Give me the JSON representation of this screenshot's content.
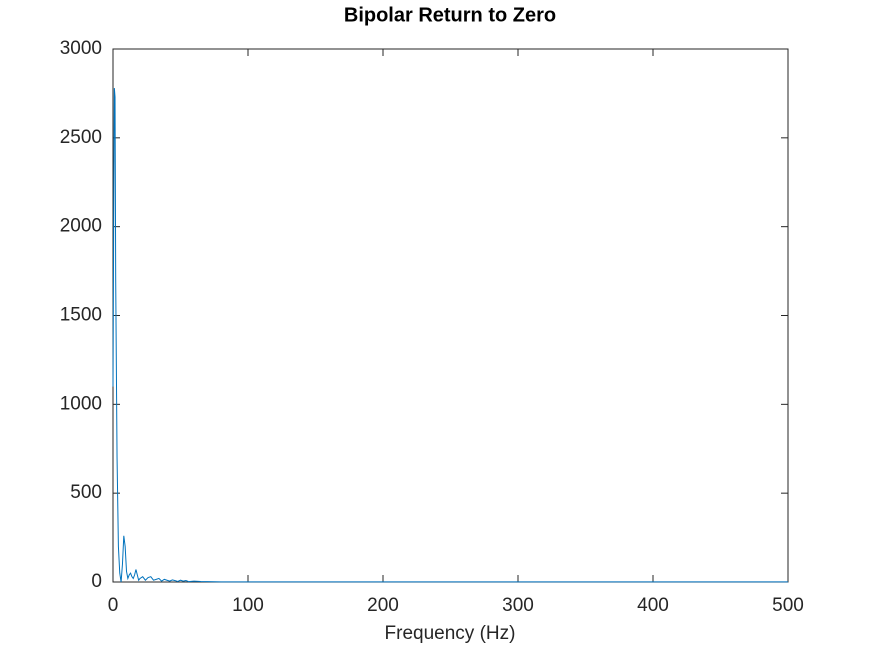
{
  "chart_data": {
    "type": "line",
    "title": "Bipolar Return to Zero",
    "x_label": "Frequency (Hz)",
    "x": [
      0,
      0.5,
      1,
      1.5,
      2,
      3,
      4,
      5,
      6,
      7,
      8,
      9,
      10,
      11,
      12,
      13,
      14,
      15,
      16,
      17,
      18,
      19,
      20,
      22,
      24,
      26,
      28,
      30,
      32,
      34,
      36,
      38,
      40,
      42,
      44,
      46,
      48,
      50,
      52,
      54,
      56,
      60,
      65,
      70,
      80,
      100,
      200,
      300,
      400,
      500
    ],
    "series": [
      {
        "color": "#0072bd",
        "values": [
          1100,
          2000,
          2780,
          2730,
          1700,
          700,
          200,
          50,
          0,
          100,
          260,
          200,
          60,
          20,
          40,
          50,
          30,
          20,
          40,
          70,
          40,
          10,
          20,
          30,
          10,
          25,
          30,
          10,
          15,
          20,
          5,
          15,
          10,
          5,
          12,
          8,
          3,
          10,
          5,
          8,
          2,
          5,
          3,
          2,
          1,
          1,
          1,
          1,
          1,
          1
        ]
      }
    ],
    "xlim": [
      0,
      500
    ],
    "xticks": [
      0,
      100,
      200,
      300,
      400,
      500
    ],
    "ylim": [
      0,
      3000
    ],
    "yticks": [
      0,
      500,
      1000,
      1500,
      2000,
      2500,
      3000
    ]
  }
}
